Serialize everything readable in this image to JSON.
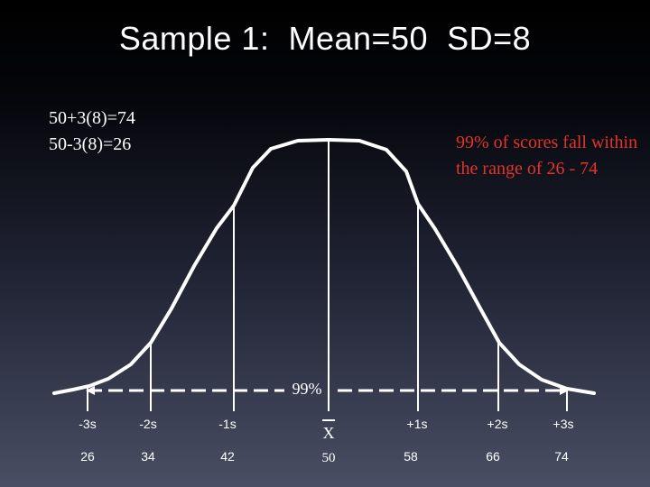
{
  "title": "Sample 1:  Mean=50  SD=8",
  "formulas": [
    "50+3(8)=74",
    "50-3(8)=26"
  ],
  "note": "99% of scores fall within the range of 26 - 74",
  "range_label": "99%",
  "sd_labels": [
    "-3s",
    "-2s",
    "-1s",
    "+1s",
    "+2s",
    "+3s"
  ],
  "score_labels": [
    "26",
    "34",
    "42",
    "58",
    "66",
    "74"
  ],
  "mean_symbol": "X",
  "mean_value": "50",
  "colors": {
    "note": "#e0352b",
    "curve": "#ffffff",
    "text": "#ffffff"
  }
}
